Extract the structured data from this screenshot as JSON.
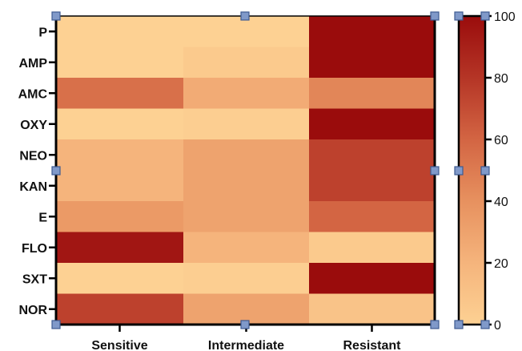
{
  "chart_data": {
    "type": "heatmap",
    "rows": [
      "P",
      "AMP",
      "AMC",
      "OXY",
      "NEO",
      "KAN",
      "E",
      "FLO",
      "SXT",
      "NOR"
    ],
    "columns": [
      "Sensitive",
      "Intermediate",
      "Resistant"
    ],
    "values": [
      [
        0,
        0,
        100
      ],
      [
        0,
        5,
        100
      ],
      [
        55,
        25,
        45
      ],
      [
        0,
        2,
        100
      ],
      [
        20,
        30,
        75
      ],
      [
        20,
        30,
        75
      ],
      [
        35,
        30,
        60
      ],
      [
        95,
        20,
        5
      ],
      [
        0,
        2,
        100
      ],
      [
        75,
        30,
        10
      ]
    ],
    "colorbar": {
      "min": 0,
      "max": 100,
      "ticks": [
        0,
        20,
        40,
        60,
        80,
        100
      ],
      "tick_labels": [
        "0",
        "20",
        "40",
        "60",
        "80",
        "100"
      ],
      "low_color": "#FDD193",
      "high_color": "#9A0C0C"
    },
    "title": "",
    "xlabel": "",
    "ylabel": "",
    "grid": false,
    "legend": "colorbar at right"
  },
  "colors": {
    "axis": "#000000",
    "selection_handle_fill": "#8099C9",
    "selection_handle_stroke": "#3E5A91"
  }
}
